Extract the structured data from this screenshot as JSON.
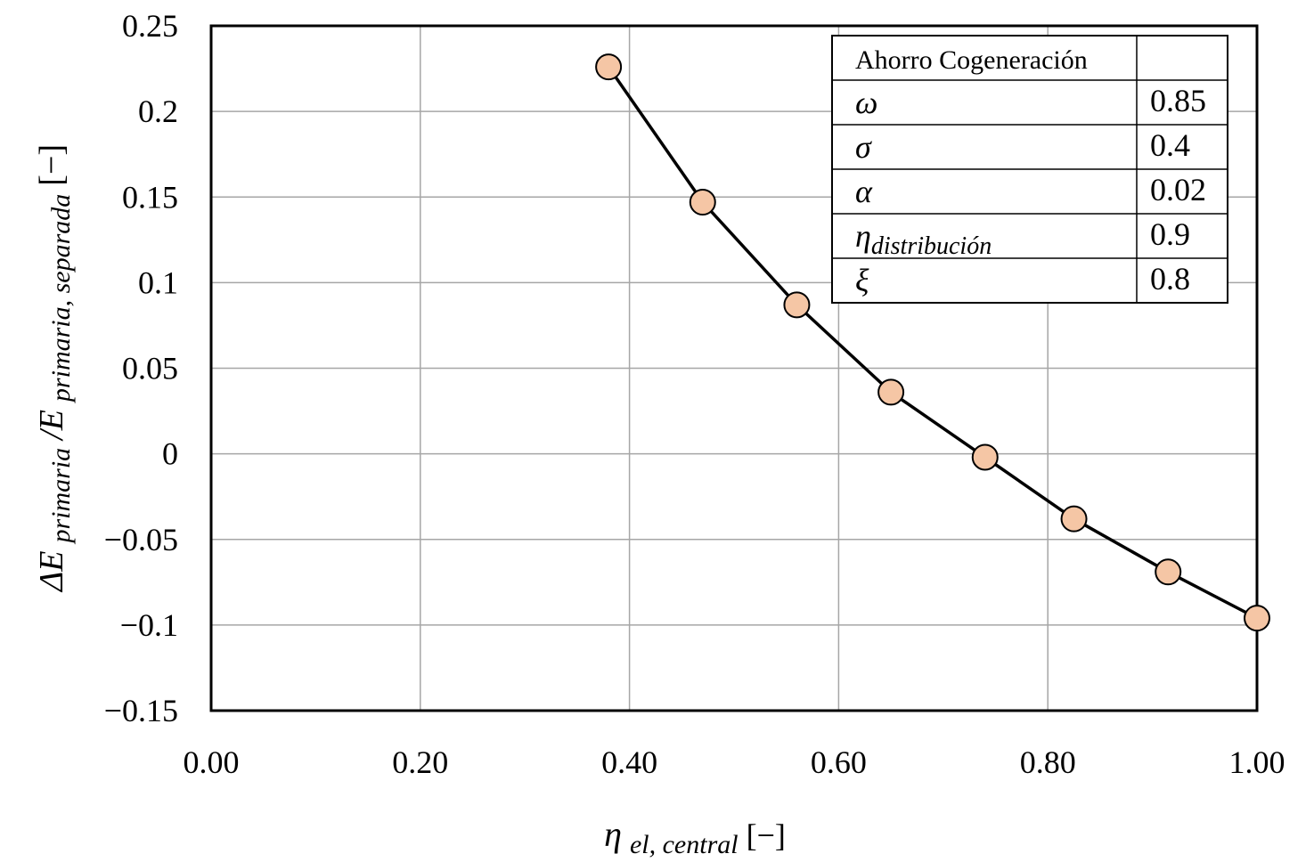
{
  "chart_data": {
    "type": "line",
    "x": [
      0.38,
      0.47,
      0.56,
      0.65,
      0.74,
      0.825,
      0.915,
      1.0
    ],
    "series": [
      {
        "values": [
          0.226,
          0.147,
          0.087,
          0.036,
          -0.002,
          -0.038,
          -0.069,
          -0.096
        ]
      }
    ],
    "xlim": [
      0,
      1
    ],
    "ylim": [
      -0.15,
      0.25
    ],
    "xticks": [
      0,
      0.2,
      0.4,
      0.6,
      0.8,
      1.0
    ],
    "xtick_labels": [
      "0.00",
      "0.20",
      "0.40",
      "0.60",
      "0.80",
      "1.00"
    ],
    "yticks": [
      0.25,
      0.2,
      0.15,
      0.1,
      0.05,
      0,
      -0.05,
      -0.1,
      -0.15
    ],
    "ytick_labels": [
      "0.25",
      "0.2",
      "0.15",
      "0.1",
      "0.05",
      "0",
      "−0.05",
      "−0.1",
      "−0.15"
    ],
    "xlabel": {
      "main": "η",
      "sub": "el, central",
      "unit": " [−]"
    },
    "ylabel": {
      "delta": "ΔE",
      "sub1": "primaria",
      "sep": " /E",
      "sub2": "primaria, separada",
      "unit": " [−]"
    },
    "grid": true,
    "marker_fill": "#f5c6a5",
    "line_color": "#000000",
    "annotation_table": {
      "title": "Ahorro Cogeneración",
      "rows": [
        {
          "symbol": "ω",
          "sub": "",
          "value": "0.85"
        },
        {
          "symbol": "σ",
          "sub": "",
          "value": "0.4"
        },
        {
          "symbol": "α",
          "sub": "",
          "value": "0.02"
        },
        {
          "symbol": "η",
          "sub": "distribución",
          "value": "0.9"
        },
        {
          "symbol": "ξ",
          "sub": "",
          "value": "0.8"
        }
      ]
    }
  }
}
